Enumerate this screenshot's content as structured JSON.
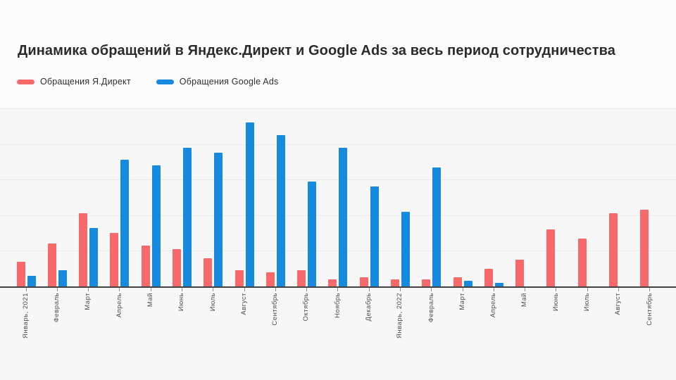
{
  "title": "Динамика обращений в Яндекс.Директ и Google Ads за весь период сотрудничества",
  "colors": {
    "yadirect": "#f8696c",
    "googleads": "#168ade",
    "axis": "#424242",
    "gridline": "#ebebed",
    "plot_background": "#f7f7f8",
    "page_background": "#fcfcfd"
  },
  "legend": {
    "items": [
      {
        "label": "Обращения Я.Директ",
        "series": "yadirect"
      },
      {
        "label": "Обращения Google Ads",
        "series": "googleads"
      }
    ]
  },
  "chart_data": {
    "type": "bar",
    "title": "Динамика обращений в Яндекс.Директ и Google Ads за весь период сотрудничества",
    "categories": [
      "Январь, 2021",
      "Февраль",
      "Март",
      "Апрель",
      "Май",
      "Июнь",
      "Июль",
      "Август",
      "Сентябрь",
      "Октябрь",
      "Ноябрь",
      "Декабрь",
      "Январь, 2022",
      "Февраль",
      "Март",
      "Апрель",
      "Май",
      "Июнь",
      "Июль",
      "Август",
      "Сентябрь"
    ],
    "series": [
      {
        "name": "Обращения Я.Директ",
        "color": "#f8696c",
        "values": [
          7,
          12,
          20.5,
          15,
          11.5,
          10.5,
          8,
          4.5,
          4,
          4.5,
          2,
          2.5,
          2,
          2,
          2.5,
          5,
          7.5,
          16,
          13.5,
          20.5,
          21.5
        ]
      },
      {
        "name": "Обращения Google Ads",
        "color": "#168ade",
        "values": [
          3,
          4.5,
          16.5,
          35.5,
          34,
          39,
          37.5,
          46,
          42.5,
          29.5,
          39,
          28,
          21,
          33.5,
          1.5,
          1,
          0,
          0,
          0,
          0,
          0
        ]
      }
    ],
    "xlabel": "",
    "ylabel": "",
    "ylim": [
      0,
      50
    ],
    "grid": true,
    "grid_step": 10,
    "y_axis_labels_visible": false,
    "x_label_rotation": -90,
    "legend_position": "top-left"
  }
}
